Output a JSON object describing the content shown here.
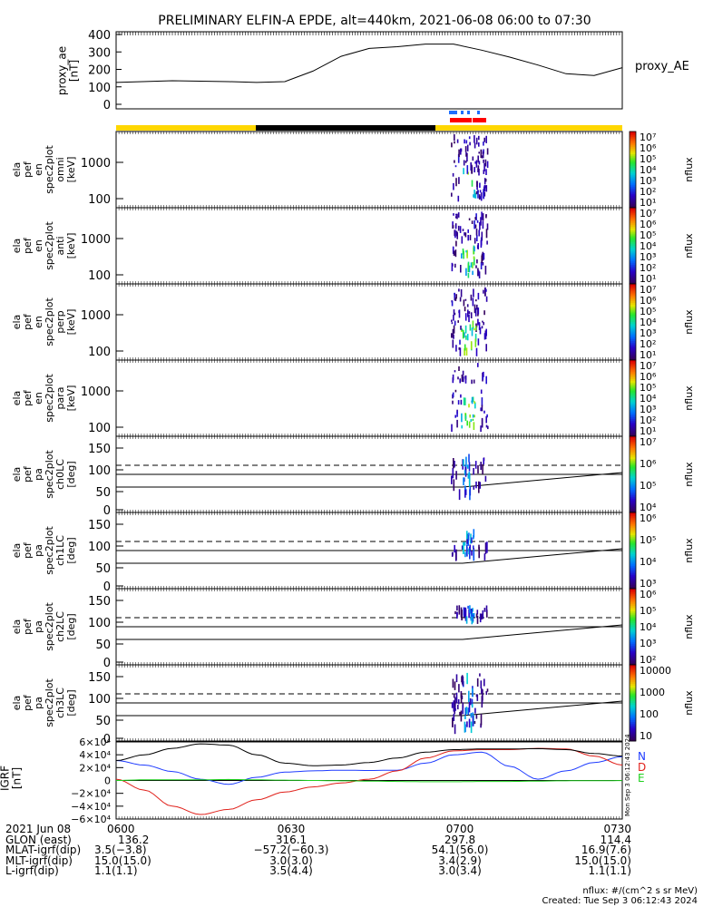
{
  "title": "PRELIMINARY ELFIN-A EPDE, alt=440km, 2021-06-08 06:00 to 07:30",
  "proxy_ae": {
    "ylabel_lines": [
      "proxy_ae",
      "[nT]"
    ],
    "yticks": [
      "400",
      "300",
      "200",
      "100",
      "0"
    ],
    "legend": "proxy_AE"
  },
  "spec_panels": [
    {
      "ylabel_lines": [
        "ela",
        "pef",
        "en",
        "spec2plot",
        "omni",
        "[keV]"
      ],
      "yticks": [
        "1000",
        "100"
      ]
    },
    {
      "ylabel_lines": [
        "ela",
        "pef",
        "en",
        "spec2plot",
        "anti",
        "[keV]"
      ],
      "yticks": [
        "1000",
        "100"
      ]
    },
    {
      "ylabel_lines": [
        "ela",
        "pef",
        "en",
        "spec2plot",
        "perp",
        "[keV]"
      ],
      "yticks": [
        "1000",
        "100"
      ]
    },
    {
      "ylabel_lines": [
        "ela",
        "pef",
        "en",
        "spec2plot",
        "para",
        "[keV]"
      ],
      "yticks": [
        "1000",
        "100"
      ]
    },
    {
      "ylabel_lines": [
        "ela",
        "pef",
        "pa",
        "spec2plot",
        "ch0LC",
        "[deg]"
      ],
      "yticks": [
        "150",
        "100",
        "50",
        "0"
      ]
    },
    {
      "ylabel_lines": [
        "ela",
        "pef",
        "pa",
        "spec2plot",
        "ch1LC",
        "[deg]"
      ],
      "yticks": [
        "150",
        "100",
        "50",
        "0"
      ]
    },
    {
      "ylabel_lines": [
        "ela",
        "pef",
        "pa",
        "spec2plot",
        "ch2LC",
        "[deg]"
      ],
      "yticks": [
        "150",
        "100",
        "50",
        "0"
      ]
    },
    {
      "ylabel_lines": [
        "ela",
        "pef",
        "pa",
        "spec2plot",
        "ch3LC",
        "[deg]"
      ],
      "yticks": [
        "150",
        "100",
        "50",
        "0"
      ]
    }
  ],
  "colorbars": [
    {
      "label": "nflux",
      "ticks": [
        "10⁷",
        "10⁶",
        "10⁵",
        "10⁴",
        "10³",
        "10²",
        "10¹"
      ]
    },
    {
      "label": "nflux",
      "ticks": [
        "10⁷",
        "10⁶",
        "10⁵",
        "10⁴",
        "10³",
        "10²",
        "10¹"
      ]
    },
    {
      "label": "nflux",
      "ticks": [
        "10⁷",
        "10⁶",
        "10⁵",
        "10⁴",
        "10³",
        "10²",
        "10¹"
      ]
    },
    {
      "label": "nflux",
      "ticks": [
        "10⁷",
        "10⁶",
        "10⁵",
        "10⁴",
        "10³",
        "10²",
        "10¹"
      ]
    },
    {
      "label": "nflux",
      "ticks": [
        "10⁷",
        "10⁶",
        "10⁵",
        "10⁴"
      ]
    },
    {
      "label": "nflux",
      "ticks": [
        "10⁶",
        "10⁵",
        "10⁴",
        "10³"
      ]
    },
    {
      "label": "nflux",
      "ticks": [
        "10⁶",
        "10⁵",
        "10⁴",
        "10³",
        "10²"
      ]
    },
    {
      "label": "nflux",
      "ticks": [
        "10000",
        "1000",
        "100",
        "10"
      ]
    }
  ],
  "igrf": {
    "ylabel_lines": [
      "IGRF",
      "[nT]"
    ],
    "yticks": [
      "6×10⁴",
      "4×10⁴",
      "2×10⁴",
      "0",
      "−2×10⁴",
      "−4×10⁴",
      "−6×10⁴"
    ],
    "legend": [
      {
        "label": "N",
        "color": "#1f3cff"
      },
      {
        "label": "D",
        "color": "#e0201a"
      },
      {
        "label": "E",
        "color": "#20d020"
      }
    ],
    "side_stamp": "Mon Sep  3 06:12:43 2024"
  },
  "footer": {
    "rows": [
      {
        "label": "2021 Jun 08",
        "values": [
          "0600",
          "0630",
          "0700",
          "0730"
        ]
      },
      {
        "label": "GLON (east)",
        "values": [
          "136.2",
          "316.1",
          "297.8",
          "114.4"
        ]
      },
      {
        "label": "MLAT-igrf(dip)",
        "values": [
          "3.5(−3.8)",
          "−57.2(−60.3)",
          "54.1(56.0)",
          "16.9(7.6)"
        ]
      },
      {
        "label": "MLT-igrf(dip)",
        "values": [
          "15.0(15.0)",
          "3.0(3.0)",
          "3.4(2.9)",
          "15.0(15.0)"
        ]
      },
      {
        "label": "L-igrf(dip)",
        "values": [
          "1.1(1.1)",
          "3.5(4.4)",
          "3.0(3.4)",
          "1.1(1.1)"
        ]
      }
    ],
    "units_note": "nflux: #/(cm^2 s sr MeV)",
    "created": "Created: Tue Sep  3 06:12:43 2024"
  },
  "colors": {
    "sunlit_bar": "#ffd700",
    "eclipse_bar": "#000000",
    "science_blue": "#1e6eff",
    "science_red": "#ff0000"
  },
  "chart_data": [
    {
      "type": "line",
      "name_key": "proxy_AE",
      "x_unit": "UT hhmm",
      "x": [
        "0600",
        "0610",
        "0620",
        "0625",
        "0630",
        "0635",
        "0640",
        "0645",
        "0650",
        "0655",
        "0700",
        "0705",
        "0710",
        "0715",
        "0720",
        "0725",
        "0730"
      ],
      "series": [
        {
          "name": "proxy_AE",
          "values": [
            125,
            135,
            130,
            125,
            130,
            190,
            275,
            320,
            330,
            345,
            345,
            310,
            270,
            225,
            175,
            165,
            210
          ]
        }
      ],
      "ylim": [
        0,
        400
      ]
    },
    {
      "type": "line",
      "name_key": "IGRF",
      "x_unit": "UT hhmm",
      "x": [
        "0600",
        "0605",
        "0610",
        "0615",
        "0620",
        "0625",
        "0630",
        "0635",
        "0640",
        "0645",
        "0650",
        "0655",
        "0700",
        "0705",
        "0710",
        "0715",
        "0720",
        "0725",
        "0730"
      ],
      "series": [
        {
          "name": "N",
          "values": [
            31000,
            24000,
            14000,
            2000,
            -6000,
            5000,
            13000,
            15000,
            16000,
            15500,
            16000,
            27000,
            40000,
            44000,
            22000,
            2000,
            15000,
            28000,
            37000
          ]
        },
        {
          "name": "D",
          "values": [
            2000,
            -15000,
            -40000,
            -53000,
            -45000,
            -30000,
            -18000,
            -10000,
            -4000,
            2000,
            15000,
            35000,
            46000,
            48000,
            48000,
            50000,
            49000,
            38000,
            24000
          ]
        },
        {
          "name": "E",
          "values": [
            0,
            1000,
            1000,
            1000,
            1500,
            1000,
            500,
            0,
            -500,
            -1000,
            -1500,
            -2000,
            -2000,
            -1500,
            -1500,
            -1000,
            -500,
            -300,
            -200
          ]
        },
        {
          "name": "total",
          "values": [
            31000,
            40000,
            50000,
            57000,
            55000,
            40000,
            27000,
            23000,
            24000,
            28000,
            35000,
            44000,
            48000,
            49000,
            49000,
            49500,
            48000,
            42000,
            38000
          ]
        }
      ],
      "ylim": [
        -60000,
        60000
      ]
    }
  ]
}
